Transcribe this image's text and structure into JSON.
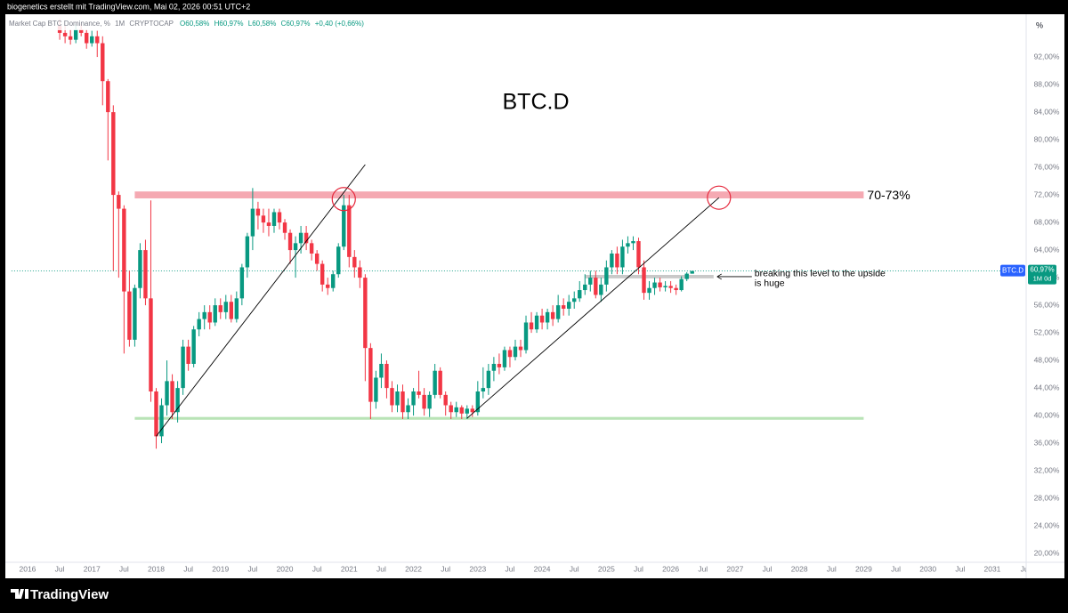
{
  "header": {
    "credit": "biogenetics erstellt mit TradingView.com, Mai 02, 2026 00:51 UTC+2"
  },
  "footer": {
    "brand": "TradingView"
  },
  "chart_data": {
    "type": "candlestick",
    "title": "BTC.D",
    "legend": {
      "symbol": "Market Cap BTC Dominance, %",
      "interval": "1M",
      "source": "CRYPTOCAP",
      "open": "O60,58%",
      "high": "H60,97%",
      "low": "L60,58%",
      "close": "C60,97%",
      "change": "+0,40 (+0,66%)"
    },
    "axis_unit": "%",
    "x": [
      "2016-07",
      "2016-08",
      "2016-09",
      "2016-10",
      "2016-11",
      "2016-12",
      "2017-01",
      "2017-02",
      "2017-03",
      "2017-04",
      "2017-05",
      "2017-06",
      "2017-07",
      "2017-08",
      "2017-09",
      "2017-10",
      "2017-11",
      "2017-12",
      "2018-01",
      "2018-02",
      "2018-03",
      "2018-04",
      "2018-05",
      "2018-06",
      "2018-07",
      "2018-08",
      "2018-09",
      "2018-10",
      "2018-11",
      "2018-12",
      "2019-01",
      "2019-02",
      "2019-03",
      "2019-04",
      "2019-05",
      "2019-06",
      "2019-07",
      "2019-08",
      "2019-09",
      "2019-10",
      "2019-11",
      "2019-12",
      "2020-01",
      "2020-02",
      "2020-03",
      "2020-04",
      "2020-05",
      "2020-06",
      "2020-07",
      "2020-08",
      "2020-09",
      "2020-10",
      "2020-11",
      "2020-12",
      "2021-01",
      "2021-02",
      "2021-03",
      "2021-04",
      "2021-05",
      "2021-06",
      "2021-07",
      "2021-08",
      "2021-09",
      "2021-10",
      "2021-11",
      "2021-12",
      "2022-01",
      "2022-02",
      "2022-03",
      "2022-04",
      "2022-05",
      "2022-06",
      "2022-07",
      "2022-08",
      "2022-09",
      "2022-10",
      "2022-11",
      "2022-12",
      "2023-01",
      "2023-02",
      "2023-03",
      "2023-04",
      "2023-05",
      "2023-06",
      "2023-07",
      "2023-08",
      "2023-09",
      "2023-10",
      "2023-11",
      "2023-12",
      "2024-01",
      "2024-02",
      "2024-03",
      "2024-04",
      "2024-05",
      "2024-06",
      "2024-07",
      "2024-08",
      "2024-09",
      "2024-10",
      "2024-11",
      "2024-12",
      "2025-01",
      "2025-02",
      "2025-03",
      "2025-04",
      "2025-05",
      "2025-06",
      "2025-07",
      "2025-08",
      "2025-09",
      "2025-10",
      "2025-11",
      "2025-12",
      "2026-01",
      "2026-02",
      "2026-03",
      "2026-04",
      "2026-05"
    ],
    "open": [
      96.5,
      95.5,
      95,
      94.5,
      96,
      95.5,
      94,
      95,
      94,
      88.5,
      84,
      72,
      70,
      58,
      51,
      58.5,
      64,
      57,
      43.5,
      37,
      41.5,
      45,
      40.5,
      44,
      50,
      47.5,
      52.5,
      54,
      55,
      53.5,
      56,
      55,
      56.5,
      54,
      57,
      61.5,
      66,
      70,
      69,
      68,
      67.5,
      69.5,
      68,
      66.5,
      64,
      65,
      66.5,
      65,
      63.5,
      62,
      59,
      58.5,
      60.5,
      64.5,
      70.5,
      63,
      61.5,
      60,
      49.8,
      42,
      45.5,
      47.5,
      44,
      41.5,
      43.5,
      40.5,
      41.5,
      43.5,
      43,
      41,
      43,
      46.5,
      43,
      41.5,
      40.5,
      41.2,
      40.3,
      41,
      40.5,
      43.5,
      44,
      46.5,
      47.5,
      47,
      49.5,
      48.5,
      50,
      49.5,
      53.5,
      52.5,
      54.5,
      53.5,
      55,
      54,
      56,
      55.5,
      56.5,
      57,
      58.2,
      59,
      60,
      57.5,
      59,
      61.5,
      63.5,
      61.5,
      64.5,
      65,
      65.3,
      61.5,
      57.8,
      58.5,
      59.3,
      58.6,
      58.8,
      58.5,
      58.2,
      59.8,
      60.58
    ],
    "high": [
      97.5,
      96.5,
      96,
      96.8,
      96.8,
      96,
      95.8,
      95.8,
      95,
      88.8,
      85,
      72.5,
      70.5,
      61,
      59,
      65,
      65.5,
      71.2,
      44,
      42.5,
      48,
      46,
      45,
      51,
      51,
      53,
      55,
      56,
      56,
      57,
      57,
      57.5,
      57.5,
      58,
      62,
      66.5,
      73,
      71,
      70,
      70,
      70,
      70,
      68.5,
      67,
      66,
      67.5,
      67.5,
      65.5,
      64,
      62.5,
      60,
      61,
      65,
      72,
      72,
      64,
      62.5,
      60.5,
      50.5,
      46.5,
      49,
      48,
      45,
      44.5,
      44.5,
      42.5,
      44,
      46.5,
      44,
      43.5,
      47.5,
      47,
      43.5,
      42,
      42,
      41.5,
      41.5,
      41.5,
      45,
      47,
      47.5,
      48.5,
      49,
      50,
      50,
      51,
      51,
      54.5,
      55,
      55,
      55.5,
      55.5,
      56,
      57.5,
      57,
      57.5,
      58,
      59.5,
      60.5,
      61,
      61,
      60,
      62.5,
      64,
      64.5,
      65.5,
      66,
      66,
      65.8,
      62.5,
      59.5,
      60,
      60,
      59.5,
      59.5,
      59,
      60.2,
      60.8,
      60.97
    ],
    "low": [
      94.5,
      94,
      93.8,
      94,
      95,
      93.2,
      93.5,
      92,
      85,
      77,
      61,
      60,
      49,
      50,
      50,
      57,
      56,
      42,
      35.2,
      36,
      40,
      39.5,
      39,
      43,
      46.5,
      47,
      51.5,
      52.5,
      52.5,
      53,
      54,
      54,
      53.5,
      53.5,
      56,
      60,
      64,
      67,
      66.5,
      66,
      66.5,
      67,
      65.5,
      62,
      60,
      63.5,
      64,
      62.5,
      61,
      58,
      57.5,
      58,
      60,
      64,
      61.5,
      60,
      58.5,
      45,
      39.5,
      41,
      44,
      42.5,
      40.5,
      40.5,
      39.5,
      39.5,
      40,
      42.5,
      40,
      39.8,
      42.5,
      42.5,
      40,
      39.5,
      39.8,
      39.5,
      39.5,
      39.8,
      40,
      42.5,
      43,
      45,
      46,
      46.5,
      47,
      48,
      48.5,
      49,
      52,
      52,
      52.5,
      52.5,
      53,
      53.5,
      54.5,
      54.5,
      55.5,
      56.5,
      57.5,
      58,
      57,
      56.5,
      58,
      60.5,
      60.5,
      60.5,
      63.5,
      64,
      60.5,
      56.8,
      56.8,
      57.5,
      58,
      58,
      57.8,
      57.5,
      58,
      59.5,
      60.58
    ],
    "close": [
      95.5,
      95,
      94.5,
      96,
      95.5,
      94,
      95,
      94,
      88.5,
      84,
      72,
      70,
      58,
      51,
      58.5,
      64,
      57,
      43.5,
      37,
      41.5,
      45,
      40.5,
      44,
      50,
      47.5,
      52.5,
      54,
      55,
      53.5,
      56,
      55,
      56.5,
      54,
      57,
      61.5,
      66,
      70,
      69,
      68,
      67.5,
      69.5,
      68,
      66.5,
      64,
      65,
      66.5,
      65,
      63.5,
      62,
      59,
      58.5,
      60.5,
      64.5,
      70.5,
      63,
      61.5,
      60,
      49.8,
      42,
      45.5,
      47.5,
      44,
      41.5,
      43.5,
      40.5,
      41.5,
      43.5,
      43,
      41,
      43,
      46.5,
      43,
      41.5,
      40.5,
      41.2,
      40.3,
      41,
      40.5,
      43.5,
      44,
      46.5,
      47.5,
      47,
      49.5,
      48.5,
      50,
      49.5,
      53.5,
      52.5,
      54.5,
      53.5,
      55,
      54,
      56,
      55.5,
      56.5,
      57,
      58.2,
      59,
      60,
      57.5,
      59,
      61.5,
      63.5,
      61.5,
      64.5,
      65,
      65.3,
      61.5,
      57.8,
      58.5,
      59.3,
      58.6,
      58.8,
      58.5,
      58.2,
      59.8,
      60.58,
      60.97
    ],
    "colors": {
      "up": "#089981",
      "down": "#f23645"
    },
    "price_tag": {
      "name": "BTC.D",
      "value_label": "60,97%",
      "countdown": "1M 0d"
    },
    "xlim": [
      "2015-10",
      "2031-08"
    ],
    "xticks": [
      {
        "value": "2016-01",
        "label": "2016"
      },
      {
        "value": "2016-07",
        "label": "Jul"
      },
      {
        "value": "2017-01",
        "label": "2017"
      },
      {
        "value": "2017-07",
        "label": "Jul"
      },
      {
        "value": "2018-01",
        "label": "2018"
      },
      {
        "value": "2018-07",
        "label": "Jul"
      },
      {
        "value": "2019-01",
        "label": "2019"
      },
      {
        "value": "2019-07",
        "label": "Jul"
      },
      {
        "value": "2020-01",
        "label": "2020"
      },
      {
        "value": "2020-07",
        "label": "Jul"
      },
      {
        "value": "2021-01",
        "label": "2021"
      },
      {
        "value": "2021-07",
        "label": "Jul"
      },
      {
        "value": "2022-01",
        "label": "2022"
      },
      {
        "value": "2022-07",
        "label": "Jul"
      },
      {
        "value": "2023-01",
        "label": "2023"
      },
      {
        "value": "2023-07",
        "label": "Jul"
      },
      {
        "value": "2024-01",
        "label": "2024"
      },
      {
        "value": "2024-07",
        "label": "Jul"
      },
      {
        "value": "2025-01",
        "label": "2025"
      },
      {
        "value": "2025-07",
        "label": "Jul"
      },
      {
        "value": "2026-01",
        "label": "2026"
      },
      {
        "value": "2026-07",
        "label": "Jul"
      },
      {
        "value": "2027-01",
        "label": "2027"
      },
      {
        "value": "2027-07",
        "label": "Jul"
      },
      {
        "value": "2028-01",
        "label": "2028"
      },
      {
        "value": "2028-07",
        "label": "Jul"
      },
      {
        "value": "2029-01",
        "label": "2029"
      },
      {
        "value": "2029-07",
        "label": "Jul"
      },
      {
        "value": "2030-01",
        "label": "2030"
      },
      {
        "value": "2030-07",
        "label": "Jul"
      },
      {
        "value": "2031-01",
        "label": "2031"
      },
      {
        "value": "2031-07",
        "label": "Ju"
      }
    ],
    "ylim": [
      18.6,
      98.2
    ],
    "yticks": [
      {
        "value": 20,
        "label": "20,00%"
      },
      {
        "value": 24,
        "label": "24,00%"
      },
      {
        "value": 28,
        "label": "28,00%"
      },
      {
        "value": 32,
        "label": "32,00%"
      },
      {
        "value": 36,
        "label": "36,00%"
      },
      {
        "value": 40,
        "label": "40,00%"
      },
      {
        "value": 44,
        "label": "44,00%"
      },
      {
        "value": 48,
        "label": "48,00%"
      },
      {
        "value": 52,
        "label": "52,00%"
      },
      {
        "value": 56,
        "label": "56,00%"
      },
      {
        "value": 60,
        "label": "60,00%"
      },
      {
        "value": 64,
        "label": "64,00%"
      },
      {
        "value": 68,
        "label": "68,00%"
      },
      {
        "value": 72,
        "label": "72,00%"
      },
      {
        "value": 76,
        "label": "76,00%"
      },
      {
        "value": 80,
        "label": "80,00%"
      },
      {
        "value": 84,
        "label": "84,00%"
      },
      {
        "value": 88,
        "label": "88,00%"
      },
      {
        "value": 92,
        "label": "92,00%"
      }
    ],
    "grid": false,
    "zones": [
      {
        "x": [
          "2017-09",
          "2029-01"
        ],
        "low": 71.5,
        "high": 72.5,
        "color": "#f5a9b2",
        "label": "70-73%"
      },
      {
        "x": [
          "2017-09",
          "2029-01"
        ],
        "low": 39.4,
        "high": 39.8,
        "color": "#b9e3b6"
      },
      {
        "x": [
          "2024-09",
          "2026-09"
        ],
        "low": 59.9,
        "high": 60.4,
        "color": "#c9c9c9",
        "note": [
          "breaking this level to the upside",
          "is huge"
        ]
      }
    ],
    "trendlines": [
      {
        "x": [
          "2018-01",
          "2021-04"
        ],
        "y": [
          37,
          76.4
        ]
      },
      {
        "x": [
          "2022-11",
          "2026-10"
        ],
        "y": [
          39.6,
          71.6
        ]
      }
    ],
    "circles": [
      {
        "x": "2020-12",
        "y": 71.4
      },
      {
        "x": "2026-10",
        "y": 71.6
      }
    ]
  }
}
